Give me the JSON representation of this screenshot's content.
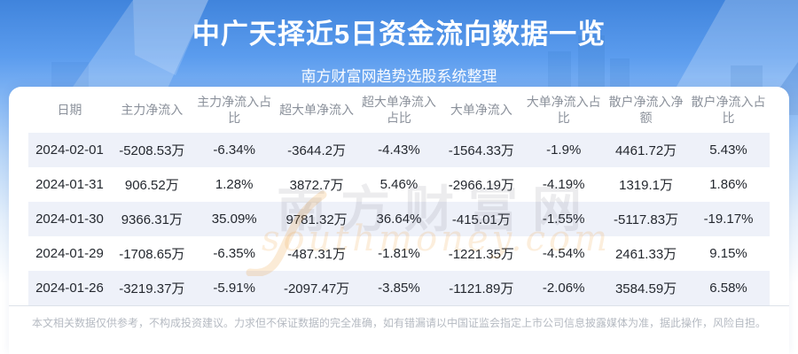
{
  "chart_data": {
    "type": "table",
    "title": "中广天择近5日资金流向数据一览",
    "subtitle": "南方财富网趋势选股系统整理",
    "columns": [
      "日期",
      "主力净流入",
      "主力净流入占比",
      "超大单净流入",
      "超大单净流入占比",
      "大单净流入",
      "大单净流入占比",
      "散户净流入净额",
      "散户净流入占比"
    ],
    "rows": [
      [
        "2024-02-01",
        "-5208.53万",
        "-6.34%",
        "-3644.2万",
        "-4.43%",
        "-1564.33万",
        "-1.9%",
        "4461.72万",
        "5.43%"
      ],
      [
        "2024-01-31",
        "906.52万",
        "1.28%",
        "3872.7万",
        "5.46%",
        "-2966.19万",
        "-4.19%",
        "1319.1万",
        "1.86%"
      ],
      [
        "2024-01-30",
        "9366.31万",
        "35.09%",
        "9781.32万",
        "36.64%",
        "-415.01万",
        "-1.55%",
        "-5117.83万",
        "-19.17%"
      ],
      [
        "2024-01-29",
        "-1708.65万",
        "-6.35%",
        "-487.31万",
        "-1.81%",
        "-1221.35万",
        "-4.54%",
        "2461.33万",
        "9.15%"
      ],
      [
        "2024-01-26",
        "-3219.37万",
        "-5.91%",
        "-2097.47万",
        "-3.85%",
        "-1121.89万",
        "-2.06%",
        "3584.59万",
        "6.58%"
      ]
    ],
    "layout": {
      "stripes": "odd rows shaded",
      "legend": "none",
      "grid": "off"
    }
  },
  "watermark": {
    "line1": "南方财富网",
    "line2": "southmoney.com"
  },
  "footer": {
    "disclaimer": "本文相关数据仅供参考，不构成投资建议。力求但不保证数据的完全准确，如有错漏请以中国证监会指定上市公司信息披露媒体为准，据此操作，风险自担。"
  },
  "colors": {
    "banner_blue": "#4e92e6",
    "stripe": "#eef1f9",
    "header_text": "#8b919b",
    "body_text": "#24282f",
    "disclaimer_text": "#b5bac2",
    "watermark_orange": "#ec9c30"
  }
}
